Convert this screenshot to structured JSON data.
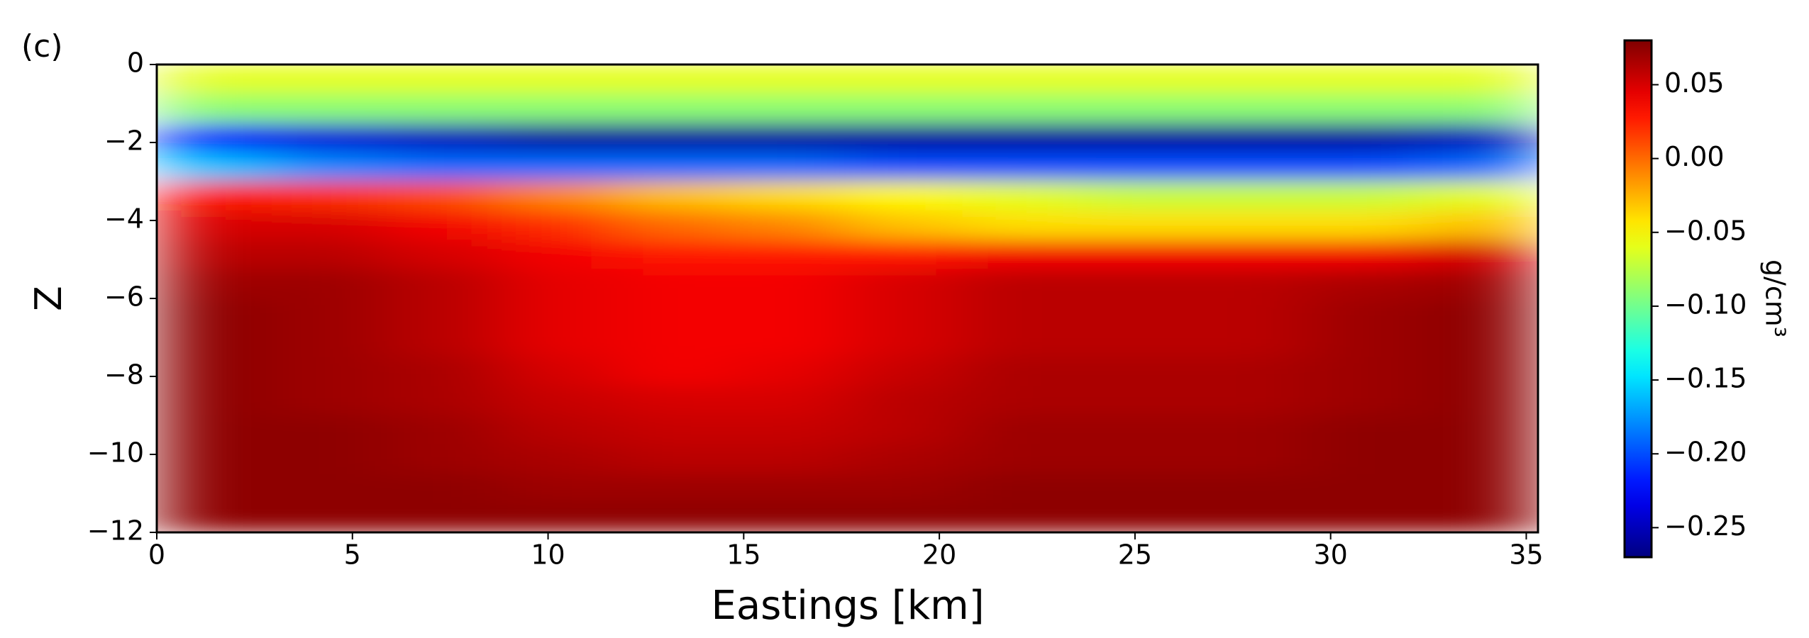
{
  "chart_data": {
    "type": "heatmap",
    "panel_label": "(c)",
    "xlabel": "Eastings [km]",
    "ylabel": "Z",
    "colorbar_label": "g/cm³",
    "colormap": "jet",
    "x": [
      1.47,
      4.41,
      7.35,
      10.29,
      13.24,
      16.18,
      19.12,
      22.06,
      25.0,
      27.94,
      30.88,
      33.82
    ],
    "y": [
      -0.375,
      -1.125,
      -1.875,
      -2.625,
      -3.375,
      -4.125,
      -4.875,
      -5.625,
      -6.375,
      -7.125,
      -7.875,
      -8.625,
      -9.375,
      -10.125,
      -10.875,
      -11.625
    ],
    "values": [
      [
        -0.06,
        -0.06,
        -0.06,
        -0.06,
        -0.06,
        -0.06,
        -0.06,
        -0.06,
        -0.06,
        -0.06,
        -0.06,
        -0.06
      ],
      [
        -0.09,
        -0.09,
        -0.09,
        -0.09,
        -0.09,
        -0.09,
        -0.09,
        -0.09,
        -0.09,
        -0.09,
        -0.09,
        -0.09
      ],
      [
        -0.22,
        -0.24,
        -0.25,
        -0.26,
        -0.26,
        -0.26,
        -0.26,
        -0.26,
        -0.26,
        -0.26,
        -0.26,
        -0.25
      ],
      [
        -0.16,
        -0.18,
        -0.19,
        -0.19,
        -0.19,
        -0.19,
        -0.2,
        -0.2,
        -0.2,
        -0.2,
        -0.2,
        -0.19
      ],
      [
        0.03,
        0.02,
        0.01,
        -0.01,
        -0.03,
        -0.04,
        -0.05,
        -0.06,
        -0.07,
        -0.07,
        -0.07,
        -0.06
      ],
      [
        0.05,
        0.05,
        0.04,
        0.02,
        0.0,
        -0.01,
        -0.03,
        -0.04,
        -0.04,
        -0.04,
        -0.04,
        -0.03
      ],
      [
        0.06,
        0.06,
        0.05,
        0.04,
        0.03,
        0.03,
        0.03,
        0.04,
        0.04,
        0.04,
        0.04,
        0.05
      ],
      [
        0.07,
        0.07,
        0.06,
        0.045,
        0.04,
        0.04,
        0.05,
        0.06,
        0.06,
        0.06,
        0.065,
        0.07
      ],
      [
        0.075,
        0.07,
        0.06,
        0.045,
        0.04,
        0.04,
        0.05,
        0.06,
        0.06,
        0.06,
        0.07,
        0.075
      ],
      [
        0.075,
        0.07,
        0.06,
        0.045,
        0.04,
        0.04,
        0.05,
        0.06,
        0.06,
        0.06,
        0.07,
        0.075
      ],
      [
        0.075,
        0.07,
        0.065,
        0.05,
        0.04,
        0.045,
        0.055,
        0.065,
        0.065,
        0.065,
        0.07,
        0.075
      ],
      [
        0.075,
        0.07,
        0.065,
        0.055,
        0.05,
        0.05,
        0.06,
        0.065,
        0.065,
        0.065,
        0.07,
        0.075
      ],
      [
        0.075,
        0.075,
        0.07,
        0.06,
        0.055,
        0.055,
        0.06,
        0.07,
        0.07,
        0.07,
        0.075,
        0.075
      ],
      [
        0.075,
        0.075,
        0.07,
        0.065,
        0.06,
        0.06,
        0.065,
        0.07,
        0.07,
        0.07,
        0.075,
        0.075
      ],
      [
        0.075,
        0.075,
        0.075,
        0.07,
        0.07,
        0.07,
        0.07,
        0.075,
        0.075,
        0.075,
        0.075,
        0.075
      ],
      [
        0.075,
        0.075,
        0.075,
        0.075,
        0.075,
        0.075,
        0.075,
        0.075,
        0.075,
        0.075,
        0.075,
        0.075
      ]
    ],
    "xlim": [
      0,
      35.3
    ],
    "ylim": [
      -12,
      0
    ],
    "clim": [
      -0.27,
      0.08
    ],
    "xticks": [
      0,
      5,
      10,
      15,
      20,
      25,
      30,
      35
    ],
    "yticks": [
      0,
      {
        "value": -2,
        "label": "−2"
      },
      {
        "value": -4,
        "label": "−4"
      },
      {
        "value": -6,
        "label": "−6"
      },
      {
        "value": -8,
        "label": "−8"
      },
      {
        "value": -10,
        "label": "−10"
      },
      {
        "value": -12,
        "label": "−12"
      }
    ],
    "cticks": [
      0.05,
      {
        "value": 0,
        "label": "0.00"
      },
      {
        "value": -0.05,
        "label": "−0.05"
      },
      {
        "value": -0.1,
        "label": "−0.10"
      },
      {
        "value": -0.15,
        "label": "−0.15"
      },
      {
        "value": -0.2,
        "label": "−0.20"
      },
      {
        "value": -0.25,
        "label": "−0.25"
      }
    ]
  }
}
